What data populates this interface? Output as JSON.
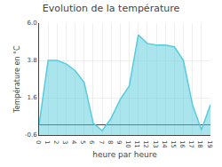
{
  "chart_data": {
    "type": "area",
    "title": "Evolution de la température",
    "xlabel": "heure par heure",
    "ylabel": "Température en °C",
    "x": [
      0,
      1,
      2,
      3,
      4,
      5,
      6,
      7,
      8,
      9,
      10,
      11,
      12,
      13,
      14,
      15,
      16,
      17,
      18,
      19
    ],
    "values": [
      0.0,
      3.8,
      3.8,
      3.6,
      3.2,
      2.5,
      0.1,
      -0.35,
      0.4,
      1.5,
      2.3,
      5.3,
      4.8,
      4.7,
      4.7,
      4.6,
      3.8,
      1.2,
      -0.3,
      1.2
    ],
    "color": "#55ccdd",
    "xlim": [
      0,
      19
    ],
    "xticks": [
      0,
      1,
      2,
      3,
      4,
      5,
      6,
      7,
      8,
      9,
      10,
      11,
      12,
      13,
      14,
      15,
      16,
      17,
      18,
      19
    ],
    "ylim": [
      -0.6,
      6.0
    ],
    "yticks": [
      -0.6,
      1.6,
      3.8,
      {
        "value": 6.0,
        "label": "6.0"
      }
    ],
    "grid": true
  }
}
